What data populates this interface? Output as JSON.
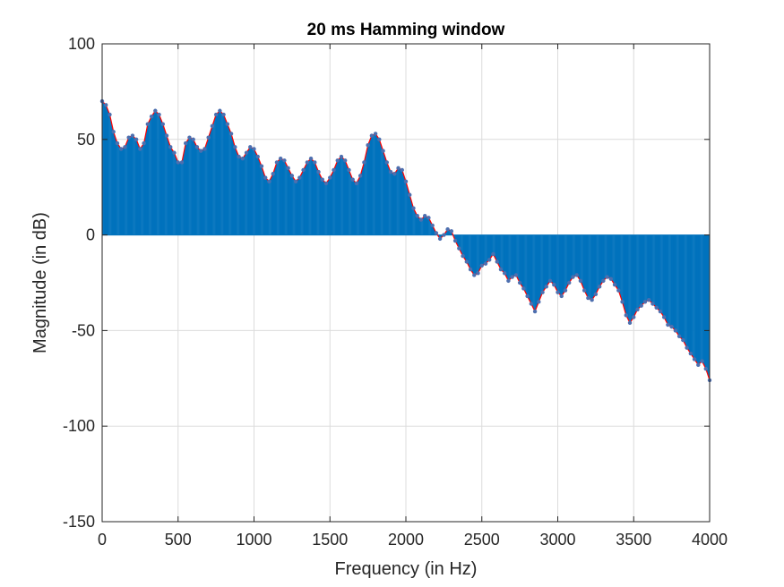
{
  "chart_data": {
    "type": "line",
    "title": "20 ms Hamming window",
    "xlabel": "Frequency (in Hz)",
    "ylabel": "Magnitude (in dB)",
    "xlim": [
      0,
      4000
    ],
    "ylim": [
      -150,
      100
    ],
    "xticks": [
      0,
      500,
      1000,
      1500,
      2000,
      2500,
      3000,
      3500,
      4000
    ],
    "yticks": [
      -150,
      -100,
      -50,
      0,
      50,
      100
    ],
    "grid": true,
    "legend": "none",
    "sample_spacing_hz": 25,
    "colors": {
      "stem": "#0072BD",
      "envelope": "#FF0000",
      "marker": "#4D6FAF",
      "grid": "#DCDCDC",
      "axis": "#262626"
    },
    "series": [
      {
        "type": "stem",
        "points": [
          [
            0,
            70
          ],
          [
            25,
            68
          ],
          [
            50,
            63
          ],
          [
            75,
            54
          ],
          [
            100,
            48
          ],
          [
            125,
            45
          ],
          [
            150,
            46
          ],
          [
            175,
            51
          ],
          [
            200,
            52
          ],
          [
            225,
            50
          ],
          [
            250,
            45
          ],
          [
            275,
            48
          ],
          [
            300,
            58
          ],
          [
            325,
            62
          ],
          [
            350,
            65
          ],
          [
            375,
            63
          ],
          [
            400,
            58
          ],
          [
            425,
            52
          ],
          [
            450,
            46
          ],
          [
            475,
            43
          ],
          [
            500,
            38
          ],
          [
            525,
            38
          ],
          [
            550,
            48
          ],
          [
            575,
            51
          ],
          [
            600,
            50
          ],
          [
            625,
            46
          ],
          [
            650,
            44
          ],
          [
            675,
            45
          ],
          [
            700,
            51
          ],
          [
            725,
            57
          ],
          [
            750,
            63
          ],
          [
            775,
            65
          ],
          [
            800,
            63
          ],
          [
            825,
            58
          ],
          [
            850,
            53
          ],
          [
            875,
            46
          ],
          [
            900,
            41
          ],
          [
            925,
            40
          ],
          [
            950,
            43
          ],
          [
            975,
            46
          ],
          [
            1000,
            45
          ],
          [
            1025,
            41
          ],
          [
            1050,
            36
          ],
          [
            1075,
            30
          ],
          [
            1100,
            28
          ],
          [
            1125,
            32
          ],
          [
            1150,
            38
          ],
          [
            1175,
            40
          ],
          [
            1200,
            39
          ],
          [
            1225,
            35
          ],
          [
            1250,
            31
          ],
          [
            1275,
            28
          ],
          [
            1300,
            30
          ],
          [
            1325,
            34
          ],
          [
            1350,
            38
          ],
          [
            1375,
            40
          ],
          [
            1400,
            38
          ],
          [
            1425,
            33
          ],
          [
            1450,
            29
          ],
          [
            1475,
            27
          ],
          [
            1500,
            30
          ],
          [
            1525,
            34
          ],
          [
            1550,
            39
          ],
          [
            1575,
            41
          ],
          [
            1600,
            39
          ],
          [
            1625,
            34
          ],
          [
            1650,
            29
          ],
          [
            1675,
            27
          ],
          [
            1700,
            31
          ],
          [
            1725,
            38
          ],
          [
            1750,
            47
          ],
          [
            1775,
            52
          ],
          [
            1800,
            53
          ],
          [
            1825,
            50
          ],
          [
            1850,
            44
          ],
          [
            1875,
            38
          ],
          [
            1900,
            33
          ],
          [
            1925,
            32
          ],
          [
            1950,
            35
          ],
          [
            1975,
            34
          ],
          [
            2000,
            28
          ],
          [
            2025,
            21
          ],
          [
            2050,
            14
          ],
          [
            2075,
            10
          ],
          [
            2100,
            8
          ],
          [
            2125,
            10
          ],
          [
            2150,
            9
          ],
          [
            2175,
            5
          ],
          [
            2200,
            1
          ],
          [
            2225,
            -2
          ],
          [
            2250,
            0
          ],
          [
            2275,
            3
          ],
          [
            2300,
            2
          ],
          [
            2325,
            -3
          ],
          [
            2350,
            -7
          ],
          [
            2375,
            -11
          ],
          [
            2400,
            -14
          ],
          [
            2425,
            -18
          ],
          [
            2450,
            -21
          ],
          [
            2475,
            -20
          ],
          [
            2500,
            -16
          ],
          [
            2525,
            -15
          ],
          [
            2550,
            -13
          ],
          [
            2575,
            -10
          ],
          [
            2600,
            -14
          ],
          [
            2625,
            -18
          ],
          [
            2650,
            -20
          ],
          [
            2675,
            -24
          ],
          [
            2700,
            -22
          ],
          [
            2725,
            -21
          ],
          [
            2750,
            -25
          ],
          [
            2775,
            -28
          ],
          [
            2800,
            -32
          ],
          [
            2825,
            -36
          ],
          [
            2850,
            -40
          ],
          [
            2875,
            -35
          ],
          [
            2900,
            -30
          ],
          [
            2925,
            -27
          ],
          [
            2950,
            -24
          ],
          [
            2975,
            -26
          ],
          [
            3000,
            -30
          ],
          [
            3025,
            -32
          ],
          [
            3050,
            -29
          ],
          [
            3075,
            -25
          ],
          [
            3100,
            -22
          ],
          [
            3125,
            -21
          ],
          [
            3150,
            -24
          ],
          [
            3175,
            -29
          ],
          [
            3200,
            -33
          ],
          [
            3225,
            -34
          ],
          [
            3250,
            -31
          ],
          [
            3275,
            -27
          ],
          [
            3300,
            -24
          ],
          [
            3325,
            -22
          ],
          [
            3350,
            -23
          ],
          [
            3375,
            -26
          ],
          [
            3400,
            -29
          ],
          [
            3425,
            -35
          ],
          [
            3450,
            -42
          ],
          [
            3475,
            -46
          ],
          [
            3500,
            -43
          ],
          [
            3525,
            -39
          ],
          [
            3550,
            -37
          ],
          [
            3575,
            -35
          ],
          [
            3600,
            -34
          ],
          [
            3625,
            -36
          ],
          [
            3650,
            -38
          ],
          [
            3675,
            -40
          ],
          [
            3700,
            -43
          ],
          [
            3725,
            -47
          ],
          [
            3750,
            -48
          ],
          [
            3775,
            -50
          ],
          [
            3800,
            -53
          ],
          [
            3825,
            -55
          ],
          [
            3850,
            -59
          ],
          [
            3875,
            -62
          ],
          [
            3900,
            -65
          ],
          [
            3925,
            -68
          ],
          [
            3950,
            -66
          ],
          [
            3975,
            -70
          ],
          [
            4000,
            -76
          ]
        ]
      }
    ]
  }
}
